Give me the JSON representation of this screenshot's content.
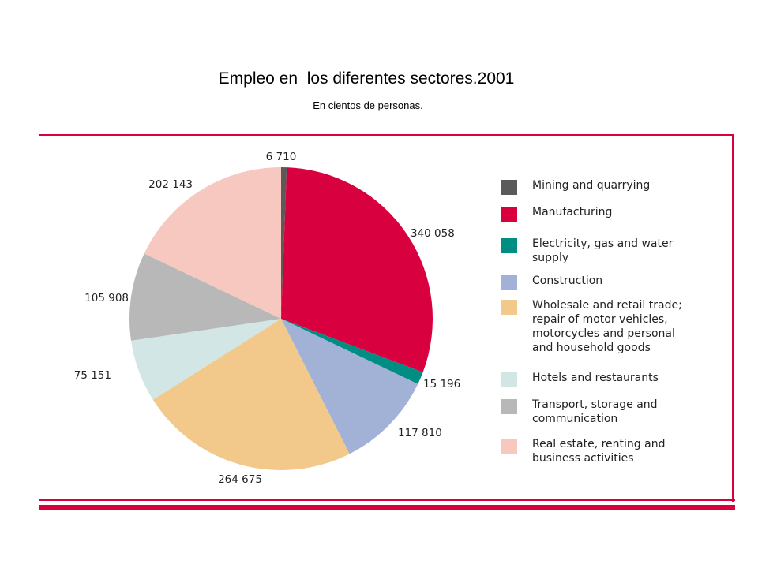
{
  "header": {
    "title": "Empleo en  los diferentes sectores.2001",
    "subtitle": "En cientos de personas."
  },
  "chart_data": {
    "type": "pie",
    "title": "Empleo en  los diferentes sectores.2001",
    "subtitle": "En cientos de personas.",
    "slices": [
      {
        "name": "Mining and quarrying",
        "value": 6710,
        "label": "6 710",
        "color": "#5a5a5a"
      },
      {
        "name": "Manufacturing",
        "value": 340058,
        "label": "340 058",
        "color": "#d8003e"
      },
      {
        "name": "Electricity, gas and water\nsupply",
        "value": 15196,
        "label": "15 196",
        "color": "#008e84"
      },
      {
        "name": "Construction",
        "value": 117810,
        "label": "117 810",
        "color": "#a2b1d6"
      },
      {
        "name": "Wholesale and retail trade;\nrepair of motor vehicles,\nmotorcycles and personal\nand household goods",
        "value": 264675,
        "label": "264 675",
        "color": "#f2c98a"
      },
      {
        "name": "Hotels and restaurants",
        "value": 75151,
        "label": "75 151",
        "color": "#d2e6e6"
      },
      {
        "name": "Transport, storage and\ncommunication",
        "value": 105908,
        "label": "105 908",
        "color": "#b8b8b8"
      },
      {
        "name": "Real estate, renting and\nbusiness activities",
        "value": 202143,
        "label": "202 143",
        "color": "#f7c8c0"
      }
    ],
    "legend_position": "right"
  }
}
